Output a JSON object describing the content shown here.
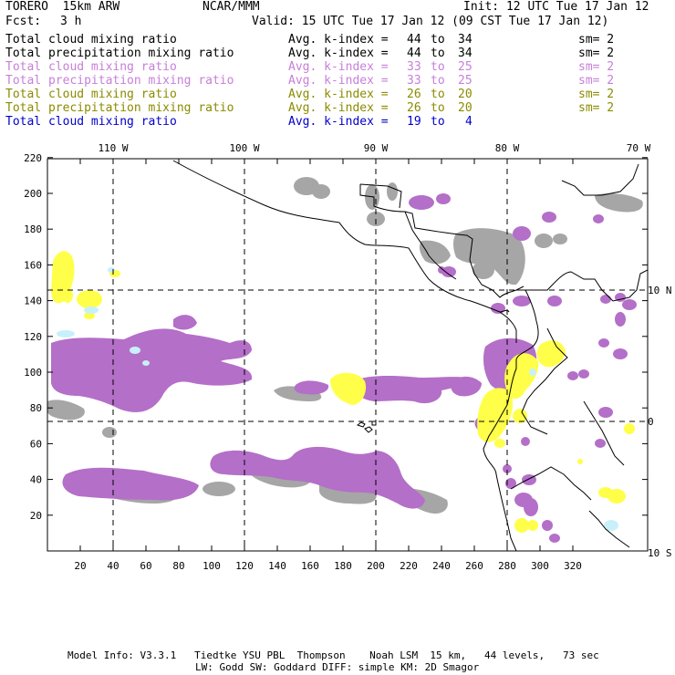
{
  "header": {
    "model": "TORERO  15km ARW",
    "org": "NCAR/MMM",
    "init": "Init: 12 UTC Tue 17 Jan 12",
    "fcst_label": "Fcst:",
    "fcst_value": "3 h",
    "valid": "Valid: 15 UTC Tue 17 Jan 12 (09 CST Tue 17 Jan 12)"
  },
  "legend": [
    {
      "field": "Total cloud mixing ratio",
      "index": "Avg. k-index = ",
      "from": "44",
      "to_word": "to",
      "to": "34",
      "sm": "sm= 2",
      "color": "#000000"
    },
    {
      "field": "Total precipitation mixing ratio",
      "index": "Avg. k-index = ",
      "from": "44",
      "to_word": "to",
      "to": "34",
      "sm": "sm= 2",
      "color": "#000000"
    },
    {
      "field": "Total cloud mixing ratio",
      "index": "Avg. k-index = ",
      "from": "33",
      "to_word": "to",
      "to": "25",
      "sm": "sm= 2",
      "color": "#c77fd8"
    },
    {
      "field": "Total precipitation mixing ratio",
      "index": "Avg. k-index = ",
      "from": "33",
      "to_word": "to",
      "to": "25",
      "sm": "sm= 2",
      "color": "#c77fd8"
    },
    {
      "field": "Total cloud mixing ratio",
      "index": "Avg. k-index = ",
      "from": "26",
      "to_word": "to",
      "to": "20",
      "sm": "sm= 2",
      "color": "#8b8b00"
    },
    {
      "field": "Total precipitation mixing ratio",
      "index": "Avg. k-index = ",
      "from": "26",
      "to_word": "to",
      "to": "20",
      "sm": "sm= 2",
      "color": "#8b8b00"
    },
    {
      "field": "Total cloud mixing ratio",
      "index": "Avg. k-index = ",
      "from": "19",
      "to_word": "to",
      "to": "4",
      "sm": "",
      "color": "#0000cc"
    }
  ],
  "axes": {
    "x_ticks": [
      "20",
      "40",
      "60",
      "80",
      "100",
      "120",
      "140",
      "160",
      "180",
      "200",
      "220",
      "240",
      "260",
      "280",
      "300",
      "320"
    ],
    "y_ticks": [
      "20",
      "40",
      "60",
      "80",
      "100",
      "120",
      "140",
      "160",
      "180",
      "200",
      "220"
    ],
    "lon_labels": [
      "110 W",
      "100 W",
      "90 W",
      "80 W",
      "70 W"
    ],
    "lat_labels": [
      "10 N",
      "0",
      "10 S"
    ]
  },
  "colors": {
    "gray": "#a6a6a6",
    "dark_gray": "#8a8a8a",
    "purple": "#b46fc8",
    "purple_dark": "#9b55b3",
    "yellow": "#ffff4a",
    "light_blue": "#c8f0fa"
  },
  "footer": {
    "line1": "Model Info: V3.3.1   Tiedtke YSU PBL  Thompson    Noah LSM  15 km,   44 levels,   73 sec",
    "line2": "LW: Godd SW: Goddard DIFF: simple KM: 2D Smagor"
  }
}
